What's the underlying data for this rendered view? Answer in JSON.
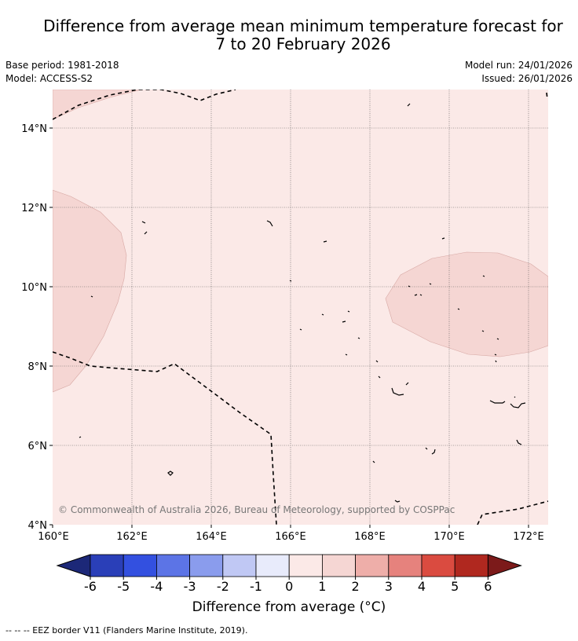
{
  "title": {
    "line1": "Difference from average mean minimum temperature forecast for",
    "line2": "7 to 20 February 2026"
  },
  "info": {
    "base_period": "Base period: 1981-2018",
    "model": "Model: ACCESS-S2",
    "model_run": "Model run: 24/01/2026",
    "issued": "Issued: 26/01/2026"
  },
  "map": {
    "lon_labels": [
      "160°E",
      "162°E",
      "164°E",
      "166°E",
      "168°E",
      "170°E",
      "172°E"
    ],
    "lat_labels": [
      "4°N",
      "6°N",
      "8°N",
      "10°N",
      "12°N",
      "14°N"
    ],
    "copyright": "© Commonwealth of Australia 2026, Bureau of Meteorology, supported by COSPPac",
    "colors": {
      "background_anomaly": "#fbe9e7",
      "warm_patch": "#f5d6d3",
      "patch_edge": "#d7a8a4",
      "border": "#000000",
      "gridline": "#555555"
    }
  },
  "colorbar": {
    "tick_labels": [
      "-6",
      "-5",
      "-4",
      "-3",
      "-2",
      "-1",
      "0",
      "1",
      "2",
      "3",
      "4",
      "5",
      "6"
    ],
    "colors": [
      "#1c2878",
      "#2a3fb8",
      "#3350e0",
      "#5c74e6",
      "#8a9ced",
      "#c0c8f4",
      "#e8ebfb",
      "#fbe9e7",
      "#f5d6d3",
      "#eeaea9",
      "#e6827d",
      "#da4b40",
      "#b0281f",
      "#7c1a1a"
    ],
    "label": "Difference from average (°C)"
  },
  "footer": "--  --  -- EEZ border V11 (Flanders Marine Institute, 2019)."
}
